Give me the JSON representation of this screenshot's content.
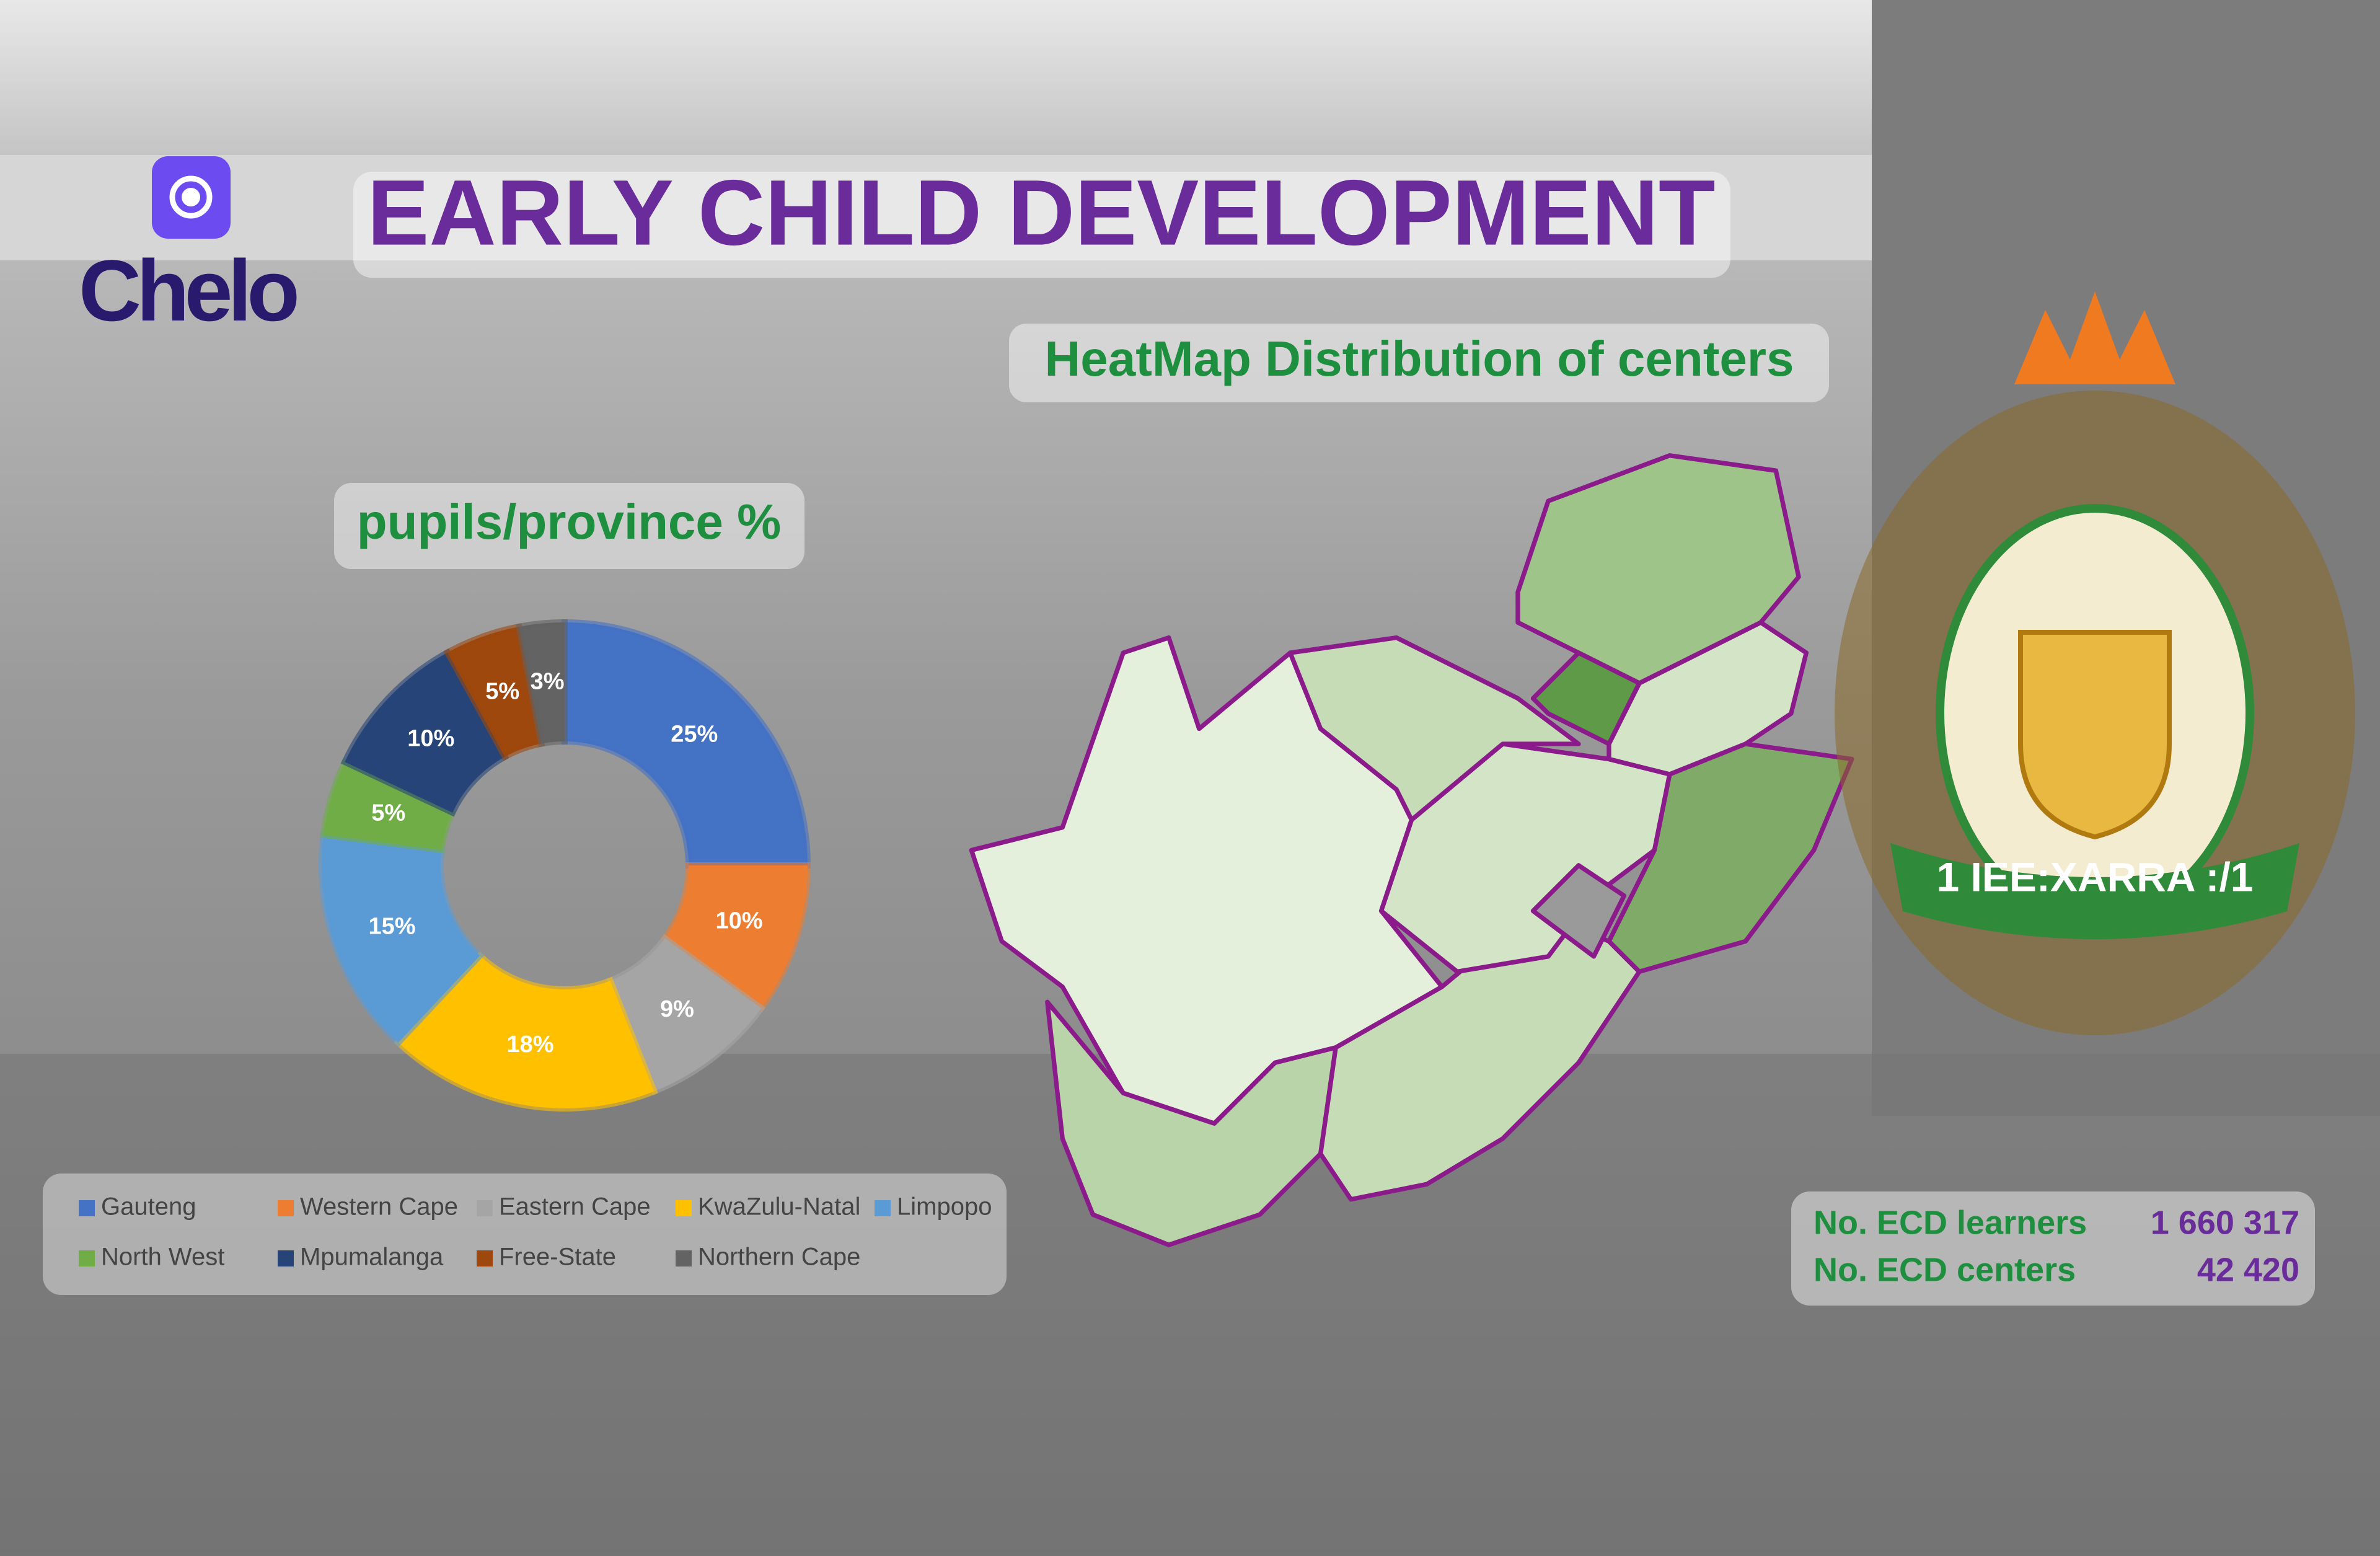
{
  "header": {
    "brand": "Chelo",
    "title": "EARLY CHILD DEVELOPMENT",
    "map_title": "HeatMap Distribution of centers"
  },
  "chart_data": {
    "type": "donut",
    "title": "pupils/province %",
    "categories": [
      "Gauteng",
      "Western Cape",
      "Eastern Cape",
      "KwaZulu-Natal",
      "Limpopo",
      "North West",
      "Mpumalanga",
      "Free-State",
      "Northern Cape"
    ],
    "values": [
      25,
      10,
      9,
      18,
      15,
      5,
      10,
      5,
      3
    ],
    "value_labels": [
      "25%",
      "10%",
      "9%",
      "18%",
      "15%",
      "5%",
      "10%",
      "5%",
      "3%"
    ],
    "colors": [
      "#4472c4",
      "#ed7d31",
      "#a5a5a5",
      "#ffc000",
      "#5b9bd5",
      "#70ad47",
      "#264478",
      "#9e480e",
      "#636363"
    ]
  },
  "stats": {
    "rows": [
      [
        "No. ECD learners",
        "1 660 317"
      ],
      [
        "No. ECD centers",
        "42 420"
      ]
    ]
  },
  "emblem": {
    "motto": "1 IEE:XARRA :/1"
  }
}
